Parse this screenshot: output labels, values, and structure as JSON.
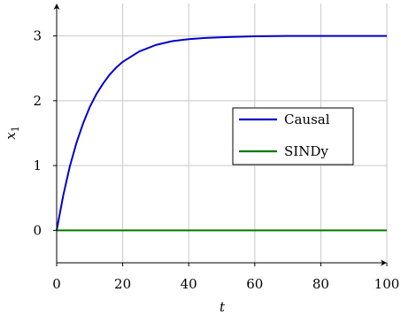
{
  "chart_data": {
    "type": "line",
    "title": "",
    "xlabel": "t",
    "ylabel": "x",
    "ylabel_subscript": "1",
    "xlim": [
      0,
      100
    ],
    "ylim": [
      -0.5,
      3.5
    ],
    "x_ticks": [
      0,
      20,
      40,
      60,
      80,
      100
    ],
    "y_ticks": [
      0,
      1,
      2,
      3
    ],
    "x_tick_labels": [
      "0",
      "20",
      "40",
      "60",
      "80",
      "100"
    ],
    "y_tick_labels": [
      "0",
      "1",
      "2",
      "3"
    ],
    "grid": true,
    "legend_position": "center-right",
    "series": [
      {
        "name": "Causal",
        "color": "#0000cc",
        "x": [
          0,
          2,
          4,
          6,
          8,
          10,
          12,
          14,
          16,
          18,
          20,
          25,
          30,
          35,
          40,
          45,
          50,
          60,
          70,
          80,
          90,
          100
        ],
        "y": [
          0,
          0.54,
          0.99,
          1.35,
          1.65,
          1.9,
          2.1,
          2.26,
          2.4,
          2.51,
          2.6,
          2.76,
          2.86,
          2.92,
          2.95,
          2.97,
          2.98,
          2.995,
          3.0,
          3.0,
          3.0,
          3.0
        ]
      },
      {
        "name": "SINDy",
        "color": "#007a00",
        "x": [
          0,
          100
        ],
        "y": [
          0,
          0
        ]
      }
    ]
  }
}
